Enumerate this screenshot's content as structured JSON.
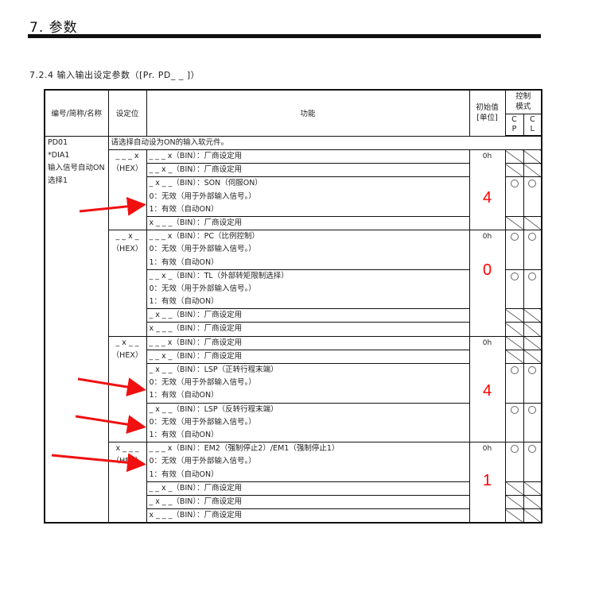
{
  "page_title": "7. 参数",
  "section_title": "7.2.4 输入输出设定参数（[Pr. PD_ _ ]）",
  "table": {
    "headers": {
      "id": "编号/简称/名称",
      "digit": "设定位",
      "function": "功能",
      "initial": "初始值\n[单位]",
      "control_mode": "控制\n模式",
      "cp": "C\nP",
      "cl": "C\nL"
    },
    "param": {
      "id": "PD01",
      "abbr": "*DIA1",
      "name": "输入信号自动ON选择1"
    },
    "intro": "请选择自动设为ON的输入软元件。",
    "groups": [
      {
        "digit": "_ _ _ x",
        "hex": "（HEX）",
        "initial": "0h",
        "annotation": "4",
        "rows": [
          {
            "lines": [
              "_ _ _ x（BIN）：厂商设定用"
            ],
            "mode": "slash"
          },
          {
            "lines": [
              "_ _ x _（BIN）：厂商设定用"
            ],
            "mode": "slash"
          },
          {
            "lines": [
              "_ x _ _（BIN）：SON（伺服ON）",
              "0：无效（用于外部输入信号。）",
              "1：有效（自动ON）"
            ],
            "mode": "circle"
          },
          {
            "lines": [
              "x _ _ _（BIN）：厂商设定用"
            ],
            "mode": "slash"
          }
        ]
      },
      {
        "digit": "_ _ x _",
        "hex": "（HEX）",
        "initial": "0h",
        "annotation": "0",
        "rows": [
          {
            "lines": [
              "_ _ _ x（BIN）：PC（比例控制）",
              "0：无效（用于外部输入信号。）",
              "1：有效（自动ON）"
            ],
            "mode": "circle"
          },
          {
            "lines": [
              "_ _ x _（BIN）：TL（外部转矩限制选择）",
              "0：无效（用于外部输入信号。）",
              "1：有效（自动ON）"
            ],
            "mode": "circle"
          },
          {
            "lines": [
              "_ x _ _（BIN）：厂商设定用"
            ],
            "mode": "slash"
          },
          {
            "lines": [
              "x _ _ _（BIN）：厂商设定用"
            ],
            "mode": "slash"
          }
        ]
      },
      {
        "digit": "_ x _ _",
        "hex": "（HEX）",
        "initial": "0h",
        "annotation": "4",
        "rows": [
          {
            "lines": [
              "_ _ _ x（BIN）：厂商设定用"
            ],
            "mode": "slash"
          },
          {
            "lines": [
              "_ _ x _（BIN）：厂商设定用"
            ],
            "mode": "slash"
          },
          {
            "lines": [
              "_ x _ _（BIN）：LSP（正转行程末端）",
              "0：无效（用于外部输入信号。）",
              "1：有效（自动ON）"
            ],
            "mode": "circle"
          },
          {
            "lines": [
              "_ x _ _（BIN）：LSP（反转行程末端）",
              "0：无效（用于外部输入信号。）",
              "1：有效（自动ON）"
            ],
            "mode": "circle"
          }
        ]
      },
      {
        "digit": "x _ _ _",
        "hex": "（HEX）",
        "initial": "0h",
        "annotation": "1",
        "rows": [
          {
            "lines": [
              "_ _ _ x（BIN）：EM2（强制停止2）/EM1（强制停止1）",
              "0：无效（用于外部输入信号。）",
              "1：有效（自动ON）"
            ],
            "mode": "circle"
          },
          {
            "lines": [
              "_ _ x _（BIN）：厂商设定用"
            ],
            "mode": "slash"
          },
          {
            "lines": [
              "_ x _ _（BIN）：厂商设定用"
            ],
            "mode": "slash"
          },
          {
            "lines": [
              "x _ _ _（BIN）：厂商设定用"
            ],
            "mode": "slash"
          }
        ]
      }
    ]
  },
  "colors": {
    "annotation": "#ff0000",
    "arrow": "#f01010"
  }
}
